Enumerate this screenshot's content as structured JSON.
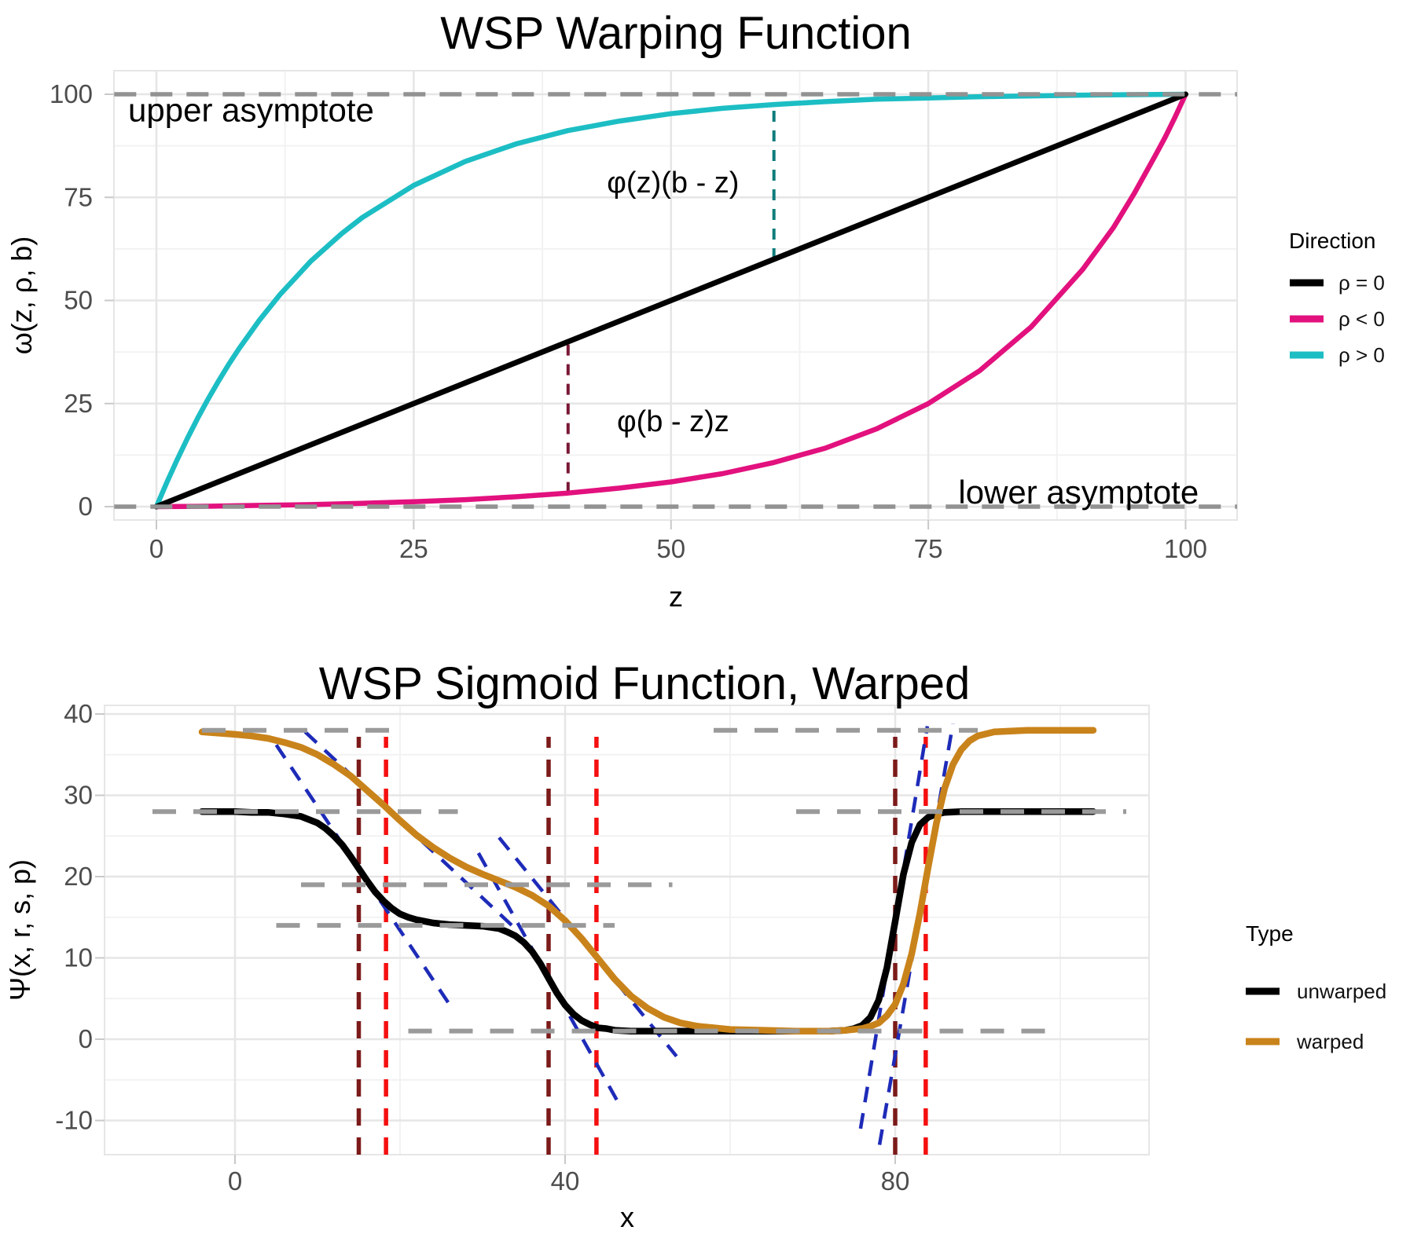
{
  "figure": {
    "background": "#FFFFFF",
    "grid_major_color": "#E6E6E6",
    "grid_minor_color": "#F2F2F2",
    "tick_label_color": "#4D4D4D"
  },
  "chart_data": [
    {
      "type": "line",
      "title": "WSP Warping Function",
      "xlabel": "z",
      "ylabel": "ω(z, ρ, b)",
      "x_ticks": [
        0,
        25,
        50,
        75,
        100
      ],
      "y_ticks": [
        0,
        25,
        50,
        75,
        100
      ],
      "x_minor": [
        12.5,
        37.5,
        62.5,
        87.5
      ],
      "y_minor": [
        12.5,
        37.5,
        62.5,
        87.5
      ],
      "xlim": [
        -4,
        105
      ],
      "ylim": [
        -3.2,
        105.7
      ],
      "grid": true,
      "legend": {
        "title": "Direction",
        "position": "right",
        "entries": [
          {
            "label": "ρ = 0",
            "color": "#000000"
          },
          {
            "label": "ρ < 0",
            "color": "#E2117E"
          },
          {
            "label": "ρ > 0",
            "color": "#1CBEC4"
          }
        ]
      },
      "series": [
        {
          "name": "ρ < 0",
          "color": "#E2117E",
          "width": 6.5,
          "points": [
            [
              0,
              0
            ],
            [
              5,
              0.1
            ],
            [
              10,
              0.3
            ],
            [
              15,
              0.5
            ],
            [
              20,
              0.8
            ],
            [
              25,
              1.2
            ],
            [
              30,
              1.7
            ],
            [
              35,
              2.4
            ],
            [
              40,
              3.3
            ],
            [
              45,
              4.5
            ],
            [
              50,
              6
            ],
            [
              55,
              8
            ],
            [
              60,
              10.7
            ],
            [
              65,
              14.2
            ],
            [
              70,
              18.9
            ],
            [
              75,
              25
            ],
            [
              80,
              33
            ],
            [
              85,
              43.6
            ],
            [
              90,
              57.5
            ],
            [
              93,
              67.7
            ],
            [
              95,
              75.9
            ],
            [
              97,
              84.9
            ],
            [
              98,
              89.5
            ],
            [
              99,
              94.6
            ],
            [
              100,
              100
            ]
          ]
        },
        {
          "name": "ρ > 0",
          "color": "#1CBEC4",
          "width": 6.5,
          "points": [
            [
              0,
              0
            ],
            [
              1,
              5.8
            ],
            [
              2,
              11.3
            ],
            [
              3,
              16.5
            ],
            [
              4,
              21.4
            ],
            [
              5,
              26
            ],
            [
              6,
              30.3
            ],
            [
              7,
              34.4
            ],
            [
              8,
              38.2
            ],
            [
              10,
              45.2
            ],
            [
              12,
              51.4
            ],
            [
              15,
              59.5
            ],
            [
              18,
              66.2
            ],
            [
              20,
              70.1
            ],
            [
              25,
              77.9
            ],
            [
              30,
              83.7
            ],
            [
              35,
              88
            ],
            [
              40,
              91.2
            ],
            [
              45,
              93.5
            ],
            [
              50,
              95.3
            ],
            [
              55,
              96.6
            ],
            [
              60,
              97.5
            ],
            [
              65,
              98.2
            ],
            [
              70,
              98.8
            ],
            [
              75,
              99.1
            ],
            [
              80,
              99.4
            ],
            [
              85,
              99.6
            ],
            [
              90,
              99.8
            ],
            [
              95,
              99.9
            ],
            [
              100,
              100
            ]
          ]
        },
        {
          "name": "ρ = 0",
          "color": "#000000",
          "width": 7,
          "points": [
            [
              0,
              0
            ],
            [
              100,
              100
            ]
          ]
        }
      ],
      "dashed_rows": [
        {
          "name": "upper asymptote",
          "y": 100,
          "spans": [
            [
              -4.1,
              105
            ]
          ],
          "color": "#929292",
          "width": 5.5,
          "dash": "28 18"
        },
        {
          "name": "lower asymptote",
          "y": 0,
          "spans": [
            [
              -4.1,
              105
            ]
          ],
          "color": "#929292",
          "width": 5.5,
          "dash": "28 18"
        }
      ],
      "vsegments": [
        {
          "x": 60,
          "y1": 60,
          "y2": 97.5,
          "color": "#0E7D7B",
          "width": 4,
          "dash": "14 11"
        },
        {
          "x": 40,
          "y1": 3.3,
          "y2": 40,
          "color": "#7A1735",
          "width": 4,
          "dash": "14 11"
        }
      ],
      "annotations": [
        {
          "text": "upper asymptote",
          "x": 9.2,
          "y": 96.2,
          "size": 42
        },
        {
          "text": "φ(z)(b - z)",
          "x": 50.2,
          "y": 78.5,
          "size": 38
        },
        {
          "text": "φ(b - z)z",
          "x": 50.2,
          "y": 20.6,
          "size": 38
        },
        {
          "text": "lower asymptote",
          "x": 89.6,
          "y": 3.5,
          "size": 42
        }
      ]
    },
    {
      "type": "line",
      "title": "WSP Sigmoid Function, Warped",
      "xlabel": "x",
      "ylabel": "Ψ(x, r, s, p)",
      "x_ticks": [
        0,
        40,
        80
      ],
      "y_ticks": [
        -10,
        0,
        10,
        20,
        30,
        40
      ],
      "x_minor": [
        20,
        60,
        100
      ],
      "y_minor": [
        -5,
        5,
        15,
        25,
        35
      ],
      "xlim": [
        -15.8,
        110.8
      ],
      "ylim": [
        -14.2,
        41
      ],
      "grid": true,
      "legend": {
        "title": "Type",
        "position": "right",
        "entries": [
          {
            "label": "unwarped",
            "color": "#000000"
          },
          {
            "label": "warped",
            "color": "#C9831B"
          }
        ]
      },
      "series": [
        {
          "name": "unwarped",
          "color": "#000000",
          "width": 8.5,
          "points": [
            [
              -4,
              28
            ],
            [
              0,
              28
            ],
            [
              2,
              27.9
            ],
            [
              4,
              27.9
            ],
            [
              6,
              27.7
            ],
            [
              8,
              27.4
            ],
            [
              10,
              26.6
            ],
            [
              11,
              25.9
            ],
            [
              12,
              25
            ],
            [
              13,
              23.9
            ],
            [
              14,
              22.5
            ],
            [
              15,
              21
            ],
            [
              16,
              19.5
            ],
            [
              17,
              18.1
            ],
            [
              18,
              17
            ],
            [
              19,
              16.1
            ],
            [
              20,
              15.4
            ],
            [
              21,
              15
            ],
            [
              22,
              14.7
            ],
            [
              24,
              14.3
            ],
            [
              26,
              14.1
            ],
            [
              28,
              14
            ],
            [
              30,
              13.9
            ],
            [
              32,
              13.6
            ],
            [
              33,
              13.2
            ],
            [
              34,
              12.7
            ],
            [
              35,
              11.9
            ],
            [
              36,
              10.8
            ],
            [
              37,
              9.3
            ],
            [
              38,
              7.5
            ],
            [
              39,
              5.7
            ],
            [
              40,
              4.2
            ],
            [
              41,
              3.1
            ],
            [
              42,
              2.3
            ],
            [
              43,
              1.8
            ],
            [
              44,
              1.4
            ],
            [
              45,
              1.3
            ],
            [
              46,
              1.1
            ],
            [
              48,
              1
            ],
            [
              52,
              1
            ],
            [
              56,
              1
            ],
            [
              60,
              1
            ],
            [
              64,
              1
            ],
            [
              68,
              1
            ],
            [
              72,
              1
            ],
            [
              74,
              1.1
            ],
            [
              75,
              1.3
            ],
            [
              76,
              1.7
            ],
            [
              77,
              2.7
            ],
            [
              78,
              4.8
            ],
            [
              79,
              8.8
            ],
            [
              80,
              14.5
            ],
            [
              81,
              20.3
            ],
            [
              82,
              24.2
            ],
            [
              83,
              26.4
            ],
            [
              84,
              27.3
            ],
            [
              85,
              27.7
            ],
            [
              86,
              27.9
            ],
            [
              88,
              28
            ],
            [
              92,
              28
            ],
            [
              96,
              28
            ],
            [
              100,
              28
            ],
            [
              104,
              28
            ]
          ]
        },
        {
          "name": "warped",
          "color": "#C9831B",
          "width": 8.5,
          "points": [
            [
              -4,
              37.8
            ],
            [
              0,
              37.5
            ],
            [
              2,
              37.3
            ],
            [
              4,
              37
            ],
            [
              6,
              36.5
            ],
            [
              8,
              35.9
            ],
            [
              10,
              35
            ],
            [
              12,
              33.8
            ],
            [
              14,
              32.4
            ],
            [
              16,
              30.6
            ],
            [
              18,
              28.8
            ],
            [
              20,
              26.9
            ],
            [
              22,
              25.1
            ],
            [
              24,
              23.6
            ],
            [
              26,
              22.3
            ],
            [
              28,
              21.2
            ],
            [
              30,
              20.3
            ],
            [
              32,
              19.5
            ],
            [
              34,
              18.7
            ],
            [
              36,
              17.7
            ],
            [
              38,
              16.4
            ],
            [
              40,
              14.6
            ],
            [
              42,
              12.4
            ],
            [
              44,
              9.9
            ],
            [
              46,
              7.4
            ],
            [
              48,
              5.3
            ],
            [
              50,
              3.8
            ],
            [
              52,
              2.7
            ],
            [
              54,
              2
            ],
            [
              56,
              1.6
            ],
            [
              58,
              1.4
            ],
            [
              60,
              1.2
            ],
            [
              64,
              1.1
            ],
            [
              68,
              1
            ],
            [
              72,
              1
            ],
            [
              74,
              1.1
            ],
            [
              76,
              1.3
            ],
            [
              77,
              1.6
            ],
            [
              78,
              2
            ],
            [
              79,
              2.9
            ],
            [
              80,
              4.3
            ],
            [
              81,
              6.8
            ],
            [
              82,
              10.5
            ],
            [
              83,
              15.5
            ],
            [
              84,
              21.2
            ],
            [
              85,
              26.6
            ],
            [
              86,
              30.9
            ],
            [
              87,
              33.8
            ],
            [
              88,
              35.6
            ],
            [
              89,
              36.7
            ],
            [
              90,
              37.3
            ],
            [
              92,
              37.8
            ],
            [
              94,
              37.9
            ],
            [
              96,
              38
            ],
            [
              100,
              38
            ],
            [
              104,
              38
            ]
          ]
        }
      ],
      "dashed_rows": [
        {
          "name": "warped upper asymptote",
          "y": 38,
          "spans": [
            [
              -4,
              20
            ],
            [
              58,
              90
            ]
          ],
          "color": "#9A9A9A",
          "width": 6,
          "dash": "30 22"
        },
        {
          "name": "unwarped upper asymptote",
          "y": 28,
          "spans": [
            [
              -10,
              27
            ],
            [
              68,
              108
            ]
          ],
          "color": "#9A9A9A",
          "width": 6,
          "dash": "30 22"
        },
        {
          "name": "warped mid plateau",
          "y": 19,
          "spans": [
            [
              8,
              53
            ]
          ],
          "color": "#9A9A9A",
          "width": 6,
          "dash": "30 22"
        },
        {
          "name": "unwarped mid plateau",
          "y": 14,
          "spans": [
            [
              5,
              46
            ]
          ],
          "color": "#9A9A9A",
          "width": 6,
          "dash": "30 22"
        },
        {
          "name": "lower asymptote",
          "y": 1,
          "spans": [
            [
              21,
              100
            ]
          ],
          "color": "#9A9A9A",
          "width": 6,
          "dash": "30 22"
        }
      ],
      "vsegments": [
        {
          "x": 15,
          "y1": -14.2,
          "y2": 37.2,
          "color": "#7C1A1A",
          "width": 5.5,
          "dash": "22 15"
        },
        {
          "x": 18.3,
          "y1": -14.2,
          "y2": 37.2,
          "color": "#F50F0F",
          "width": 5.5,
          "dash": "22 15"
        },
        {
          "x": 38,
          "y1": -14.2,
          "y2": 37.2,
          "color": "#7C1A1A",
          "width": 5.5,
          "dash": "22 15"
        },
        {
          "x": 43.8,
          "y1": -14.2,
          "y2": 37.2,
          "color": "#F50F0F",
          "width": 5.5,
          "dash": "22 15"
        },
        {
          "x": 80,
          "y1": -14.2,
          "y2": 37.2,
          "color": "#7C1A1A",
          "width": 5.5,
          "dash": "22 15"
        },
        {
          "x": 83.7,
          "y1": -14.2,
          "y2": 37.2,
          "color": "#F50F0F",
          "width": 5.5,
          "dash": "22 15"
        }
      ],
      "tangents": [
        {
          "name": "tangent unwarped drop 1",
          "points": [
            [
              5,
              36.2
            ],
            [
              26.5,
              3.5
            ]
          ],
          "color": "#1E2BB8",
          "width": 4.5,
          "dash": "20 14"
        },
        {
          "name": "tangent warped drop 1",
          "points": [
            [
              8.5,
              37.8
            ],
            [
              34.5,
              13.1
            ]
          ],
          "color": "#1E2BB8",
          "width": 4.5,
          "dash": "20 14"
        },
        {
          "name": "tangent unwarped drop 2",
          "points": [
            [
              29.5,
              22.9
            ],
            [
              46.5,
              -7.9
            ]
          ],
          "color": "#1E2BB8",
          "width": 4.5,
          "dash": "20 14"
        },
        {
          "name": "tangent warped drop 2",
          "points": [
            [
              32,
              24.8
            ],
            [
              53.5,
              -2.1
            ]
          ],
          "color": "#1E2BB8",
          "width": 4.5,
          "dash": "20 14"
        },
        {
          "name": "tangent unwarped rise",
          "points": [
            [
              75.8,
              -11
            ],
            [
              83.9,
              38.5
            ]
          ],
          "color": "#1E2BB8",
          "width": 4.5,
          "dash": "20 14"
        },
        {
          "name": "tangent warped rise",
          "points": [
            [
              78.1,
              -13
            ],
            [
              87,
              38.8
            ]
          ],
          "color": "#1E2BB8",
          "width": 4.5,
          "dash": "20 14"
        }
      ],
      "annotations": []
    }
  ]
}
